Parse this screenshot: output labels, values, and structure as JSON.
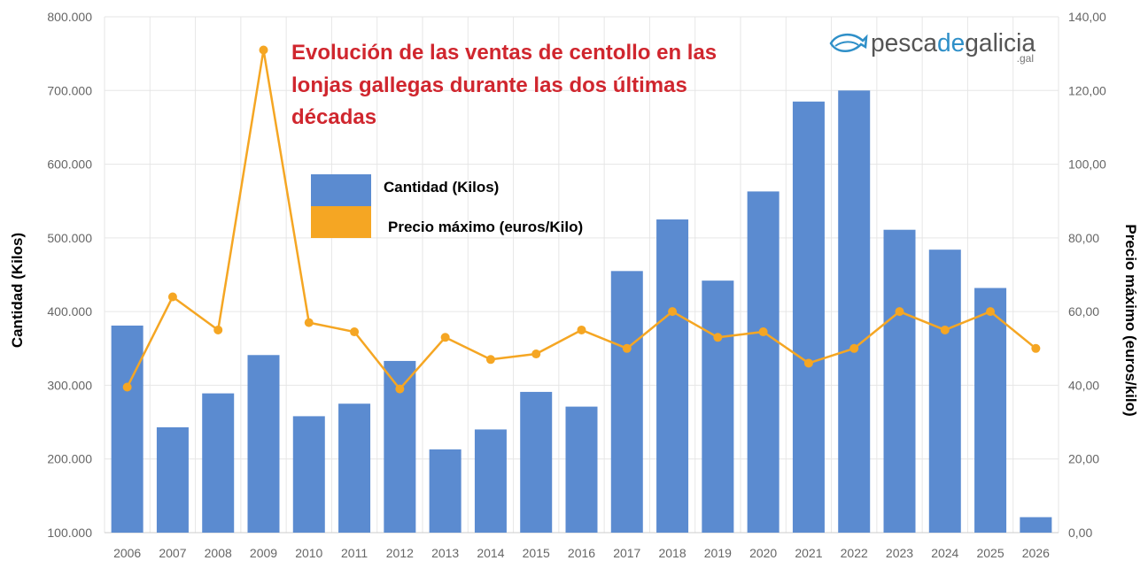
{
  "chart_data": {
    "type": "bar",
    "title_lines": [
      "Evolución de las ventas de centollo en las",
      "lonjas gallegas durante las dos últimas",
      "décadas"
    ],
    "ylabel_left": "Cantidad (Kilos)",
    "ylabel_right": "Precio máximo (euros/kilo)",
    "categories": [
      "2006",
      "2007",
      "2008",
      "2009",
      "2010",
      "2011",
      "2012",
      "2013",
      "2014",
      "2015",
      "2016",
      "2017",
      "2018",
      "2019",
      "2020",
      "2021",
      "2022",
      "2023",
      "2024",
      "2025",
      "2026"
    ],
    "series": [
      {
        "name": "Cantidad (Kilos)",
        "type": "bar",
        "axis": "left",
        "color": "#5b8bd0",
        "values": [
          381000,
          243000,
          289000,
          341000,
          258000,
          275000,
          333000,
          213000,
          240000,
          291000,
          271000,
          455000,
          525000,
          442000,
          563000,
          685000,
          700000,
          511000,
          484000,
          432000,
          121000
        ]
      },
      {
        "name": "Precio máximo (euros/Kilo)",
        "type": "line",
        "axis": "right",
        "color": "#f5a623",
        "values": [
          39.5,
          64,
          55,
          131,
          57,
          54.5,
          39,
          53,
          47,
          48.5,
          55,
          50,
          60,
          53,
          54.5,
          46,
          50,
          60,
          55,
          60,
          50
        ]
      }
    ],
    "ylim_left": [
      100000,
      800000
    ],
    "yticks_left": [
      "100.000",
      "200.000",
      "300.000",
      "400.000",
      "500.000",
      "600.000",
      "700.000",
      "800.000"
    ],
    "ylim_right": [
      0,
      140
    ],
    "yticks_right": [
      "0,00",
      "20,00",
      "40,00",
      "60,00",
      "80,00",
      "100,00",
      "120,00",
      "140,00"
    ],
    "grid": true,
    "legend_position": "top-left"
  },
  "logo": {
    "parts": [
      "pesca",
      "de",
      "galicia"
    ],
    "suffix": ".gal",
    "colors": [
      "#555555",
      "#2e8fc8",
      "#555555"
    ]
  }
}
